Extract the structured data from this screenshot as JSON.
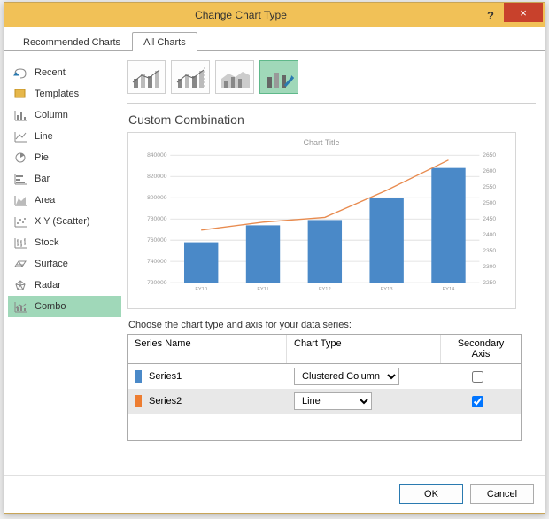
{
  "titlebar": {
    "title": "Change Chart Type",
    "help": "?",
    "close": "×"
  },
  "tabs": {
    "recommended": "Recommended Charts",
    "all": "All Charts"
  },
  "sidebar": [
    {
      "label": "Recent",
      "key": "recent"
    },
    {
      "label": "Templates",
      "key": "templates"
    },
    {
      "label": "Column",
      "key": "column"
    },
    {
      "label": "Line",
      "key": "line"
    },
    {
      "label": "Pie",
      "key": "pie"
    },
    {
      "label": "Bar",
      "key": "bar"
    },
    {
      "label": "Area",
      "key": "area"
    },
    {
      "label": "X Y (Scatter)",
      "key": "scatter"
    },
    {
      "label": "Stock",
      "key": "stock"
    },
    {
      "label": "Surface",
      "key": "surface"
    },
    {
      "label": "Radar",
      "key": "radar"
    },
    {
      "label": "Combo",
      "key": "combo",
      "selected": true
    }
  ],
  "subtitle": "Custom Combination",
  "chart": {
    "title": "Chart Title",
    "type": "combo",
    "categories": [
      "FY10",
      "FY11",
      "FY12",
      "FY13",
      "FY14"
    ],
    "primary_axis": {
      "min": 720000,
      "max": 840000,
      "step": 20000,
      "labels": [
        "720000",
        "740000",
        "760000",
        "780000",
        "800000",
        "820000",
        "840000"
      ]
    },
    "secondary_axis": {
      "min": 2250,
      "max": 2650,
      "step": 50,
      "labels": [
        "2250",
        "2350",
        "2450",
        "2550",
        "2650"
      ],
      "tick_positions": [
        2250,
        2300,
        2350,
        2400,
        2450,
        2500,
        2550,
        2600,
        2650
      ]
    },
    "series1": {
      "type": "bar",
      "color": "#4a89c8",
      "values": [
        758000,
        774000,
        779000,
        800000,
        828000
      ],
      "bar_width": 0.55
    },
    "series2": {
      "type": "line",
      "color": "#e88b4f",
      "values": [
        2415,
        2440,
        2455,
        2540,
        2635
      ],
      "line_width": 1.4
    },
    "grid_color": "#dcdcdc",
    "axis_font_color": "#999999",
    "axis_font_size": 7,
    "background": "#ffffff"
  },
  "series_caption": "Choose the chart type and axis for your data series:",
  "series_table": {
    "headers": {
      "name": "Series Name",
      "type": "Chart Type",
      "axis": "Secondary Axis"
    },
    "rows": [
      {
        "name": "Series1",
        "swatch": "#4a89c8",
        "type": "Clustered Column",
        "secondary": false
      },
      {
        "name": "Series2",
        "swatch": "#ed7d31",
        "type": "Line",
        "secondary": true
      }
    ]
  },
  "footer": {
    "ok": "OK",
    "cancel": "Cancel"
  }
}
